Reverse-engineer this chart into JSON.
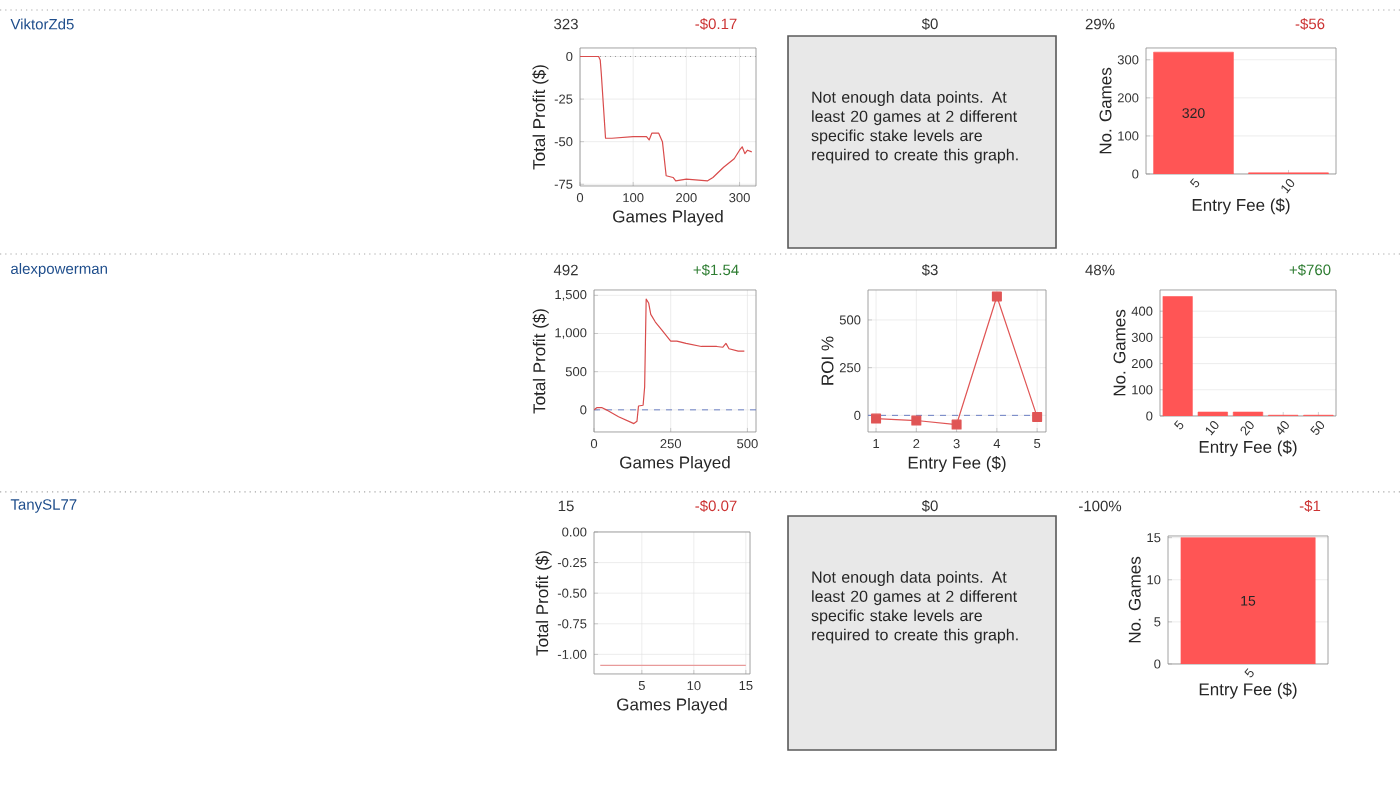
{
  "chart_data": [
    {
      "type": "other",
      "annotations": [
        "ViktorZd5",
        "323",
        "-$0.17",
        "$0",
        "29%",
        "-$56"
      ],
      "colors": [
        "#1f4e8c",
        "#333333",
        "#cc3333",
        "#333333",
        "#333333",
        "#cc3333"
      ]
    },
    {
      "type": "line",
      "xlabel": "Games Played",
      "ylabel": "Total Profit ($)",
      "xlim": [
        0,
        331
      ],
      "ylim": [
        -76,
        5
      ],
      "xticks": [
        0,
        100,
        200,
        300
      ],
      "yticks": [
        0,
        -25,
        -50,
        -75
      ],
      "grid": true,
      "ref_lines": [
        {
          "axis": "y",
          "value": 0,
          "color": "#999999",
          "line_style": "dotted"
        }
      ],
      "series": [
        {
          "color": "#d94c4c",
          "x": [
            0,
            35,
            38,
            40,
            48,
            60,
            100,
            125,
            130,
            135,
            148,
            155,
            162,
            175,
            180,
            200,
            240,
            250,
            270,
            290,
            300,
            305,
            310,
            315,
            323
          ],
          "values": [
            0,
            0,
            -2,
            -10,
            -48,
            -48,
            -47,
            -47,
            -49,
            -45,
            -45,
            -50,
            -70,
            -71,
            -73,
            -72,
            -73,
            -71,
            -65,
            -60,
            -55,
            -53,
            -57,
            -55,
            -56
          ]
        }
      ]
    },
    {
      "type": "other",
      "annotations": [
        "Not enough data points. At least 20 games at 2 different specific stake levels are required to create this graph."
      ]
    },
    {
      "type": "bar",
      "xlabel": "Entry Fee ($)",
      "ylabel": "No. Games",
      "categories": [
        "5",
        "10"
      ],
      "ylim": [
        0,
        331
      ],
      "yticks": [
        0,
        100,
        200,
        300
      ],
      "grid": "y",
      "series": [
        {
          "color": "#ff5555",
          "values": [
            320,
            3
          ],
          "value_labels": [
            "320",
            null
          ]
        }
      ]
    },
    {
      "type": "other",
      "annotations": [
        "alexpowerman",
        "492",
        "+$1.54",
        "$3",
        "48%",
        "+$760"
      ],
      "colors": [
        "#1f4e8c",
        "#333333",
        "#2e7d32",
        "#333333",
        "#333333",
        "#2e7d32"
      ]
    },
    {
      "type": "line",
      "xlabel": "Games Played",
      "ylabel": "Total Profit ($)",
      "xlim": [
        0,
        528
      ],
      "ylim": [
        -290,
        1570
      ],
      "xticks": [
        0,
        250,
        500
      ],
      "yticks": [
        0,
        500,
        {
          "value": 1000,
          "label": "1,000"
        },
        {
          "value": 1500,
          "label": "1,500"
        }
      ],
      "grid": true,
      "ref_lines": [
        {
          "axis": "y",
          "value": 0,
          "color": "#6b7fc4",
          "line_style": "dashed"
        }
      ],
      "series": [
        {
          "color": "#d94c4c",
          "x": [
            0,
            10,
            25,
            40,
            80,
            130,
            140,
            145,
            160,
            165,
            170,
            178,
            185,
            200,
            220,
            240,
            250,
            270,
            300,
            350,
            400,
            420,
            430,
            440,
            470,
            490
          ],
          "values": [
            0,
            30,
            30,
            0,
            -90,
            -180,
            -150,
            50,
            60,
            300,
            1450,
            1400,
            1250,
            1150,
            1050,
            950,
            900,
            900,
            870,
            830,
            830,
            820,
            870,
            800,
            770,
            770
          ]
        }
      ]
    },
    {
      "type": "line",
      "xlabel": "Entry Fee ($)",
      "ylabel": "ROI %",
      "xlim": [
        0.8,
        5.22
      ],
      "ylim": [
        -87,
        657
      ],
      "xticks": [
        1,
        2,
        3,
        4,
        5
      ],
      "yticks": [
        0,
        250,
        500
      ],
      "grid": true,
      "marker": "square",
      "ref_lines": [
        {
          "axis": "y",
          "value": 0,
          "color": "#6b7fc4",
          "line_style": "dashed"
        }
      ],
      "series": [
        {
          "color": "#e05555",
          "x": [
            1,
            2,
            3,
            4,
            5
          ],
          "values": [
            -17,
            -27,
            -48,
            623,
            -8
          ]
        }
      ]
    },
    {
      "type": "bar",
      "xlabel": "Entry Fee ($)",
      "ylabel": "No. Games",
      "categories": [
        "5",
        "10",
        "20",
        "40",
        "50"
      ],
      "ylim": [
        0,
        481
      ],
      "yticks": [
        0,
        100,
        200,
        300,
        400
      ],
      "grid": "y",
      "series": [
        {
          "color": "#ff5555",
          "values": [
            456,
            15,
            15,
            3,
            3
          ]
        }
      ]
    },
    {
      "type": "other",
      "annotations": [
        "TanySL77",
        "15",
        "-$0.07",
        "$0",
        "-100%",
        "-$1"
      ],
      "colors": [
        "#1f4e8c",
        "#333333",
        "#cc3333",
        "#333333",
        "#333333",
        "#cc3333"
      ]
    },
    {
      "type": "line",
      "xlabel": "Games Played",
      "ylabel": "Total Profit ($)",
      "xlim": [
        0.4,
        15.4
      ],
      "ylim": [
        -1.16,
        0
      ],
      "xticks": [
        5,
        10,
        15
      ],
      "yticks": [
        {
          "value": 0,
          "label": "0.00"
        },
        {
          "value": -0.25,
          "label": "-0.25"
        },
        {
          "value": -0.5,
          "label": "-0.50"
        },
        {
          "value": -0.75,
          "label": "-0.75"
        },
        {
          "value": -1,
          "label": "-1.00"
        }
      ],
      "grid": true,
      "series": [
        {
          "color": "#e89a9a",
          "x": [
            1,
            15
          ],
          "values": [
            -1.09,
            -1.09
          ]
        }
      ]
    },
    {
      "type": "other",
      "annotations": [
        "Not enough data points. At least 20 games at 2 different specific stake levels are required to create this graph."
      ]
    },
    {
      "type": "bar",
      "xlabel": "Entry Fee ($)",
      "ylabel": "No. Games",
      "categories": [
        "5"
      ],
      "ylim": [
        0,
        15.2
      ],
      "yticks": [
        0,
        5,
        10,
        15
      ],
      "grid": "y",
      "series": [
        {
          "color": "#ff5555",
          "values": [
            15
          ],
          "value_labels": [
            "15"
          ]
        }
      ]
    }
  ]
}
